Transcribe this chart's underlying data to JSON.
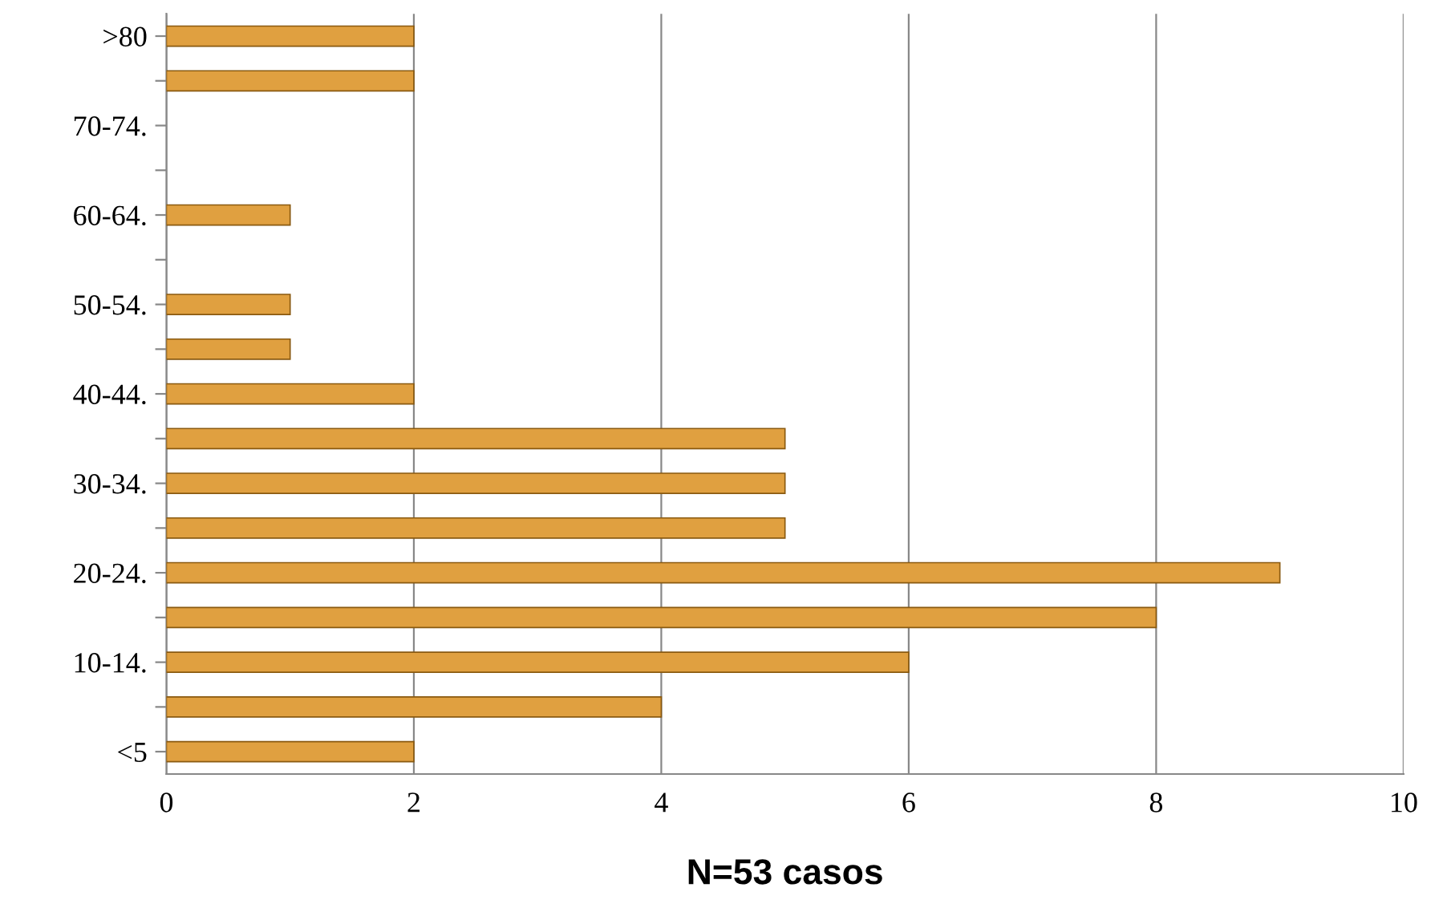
{
  "chart_data": {
    "type": "bar",
    "orientation": "horizontal",
    "xlabel": "N=53 casos",
    "categories": [
      ">80",
      null,
      "70-74.",
      null,
      "60-64.",
      null,
      "50-54.",
      null,
      "40-44.",
      null,
      "30-34.",
      null,
      "20-24.",
      null,
      "10-14.",
      null,
      "<5"
    ],
    "values": [
      2,
      2,
      0,
      0,
      1,
      0,
      1,
      1,
      2,
      5,
      5,
      5,
      9,
      8,
      6,
      4,
      2
    ],
    "color": "#e0a040",
    "xlim": [
      0,
      10
    ],
    "xticks": [
      0,
      2,
      4,
      6,
      8,
      10
    ],
    "grid": "x",
    "legend": false
  }
}
